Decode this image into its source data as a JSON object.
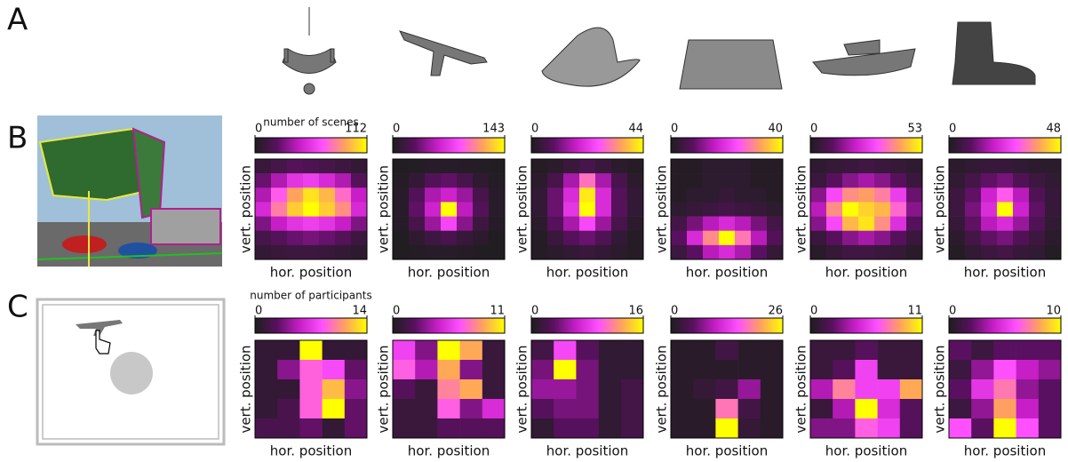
{
  "panel_labels": [
    "A",
    "B",
    "C"
  ],
  "chart_data": [
    {
      "type": "heatmap",
      "colorbar_title": "number of scenes",
      "xlabel": "hor. position",
      "ylabel": "vert. position",
      "zlim": [
        0,
        112
      ],
      "zticks": [
        0,
        112
      ],
      "colormap": [
        "#1e1e1e",
        "#5a1060",
        "#c81ec8",
        "#ff50ff",
        "#ffa060",
        "#ffff00"
      ],
      "z": [
        [
          10,
          15,
          20,
          18,
          15,
          12,
          8
        ],
        [
          25,
          40,
          55,
          60,
          50,
          40,
          20
        ],
        [
          40,
          70,
          90,
          105,
          95,
          75,
          45
        ],
        [
          50,
          80,
          100,
          112,
          100,
          85,
          50
        ],
        [
          30,
          45,
          55,
          60,
          55,
          45,
          30
        ],
        [
          15,
          20,
          25,
          28,
          25,
          20,
          12
        ],
        [
          8,
          10,
          12,
          12,
          10,
          8,
          6
        ]
      ]
    },
    {
      "type": "heatmap",
      "xlabel": "hor. position",
      "ylabel": "vert. position",
      "zlim": [
        0,
        143
      ],
      "zticks": [
        0,
        143
      ],
      "colormap": [
        "#1e1e1e",
        "#5a1060",
        "#c81ec8",
        "#ff50ff",
        "#ffa060",
        "#ffff00"
      ],
      "z": [
        [
          2,
          3,
          5,
          5,
          4,
          3,
          2
        ],
        [
          3,
          10,
          25,
          30,
          20,
          8,
          3
        ],
        [
          5,
          25,
          50,
          60,
          45,
          20,
          5
        ],
        [
          5,
          30,
          60,
          143,
          55,
          25,
          5
        ],
        [
          4,
          20,
          45,
          80,
          40,
          15,
          4
        ],
        [
          2,
          8,
          15,
          20,
          12,
          6,
          2
        ],
        [
          1,
          3,
          5,
          5,
          4,
          2,
          1
        ]
      ]
    },
    {
      "type": "heatmap",
      "xlabel": "hor. position",
      "ylabel": "vert. position",
      "zlim": [
        0,
        44
      ],
      "zticks": [
        0,
        44
      ],
      "colormap": [
        "#1e1e1e",
        "#5a1060",
        "#c81ec8",
        "#ff50ff",
        "#ffa060",
        "#ffff00"
      ],
      "z": [
        [
          1,
          2,
          4,
          6,
          4,
          2,
          1
        ],
        [
          2,
          6,
          15,
          30,
          15,
          6,
          2
        ],
        [
          3,
          10,
          20,
          42,
          20,
          8,
          3
        ],
        [
          3,
          10,
          22,
          44,
          20,
          8,
          3
        ],
        [
          2,
          8,
          15,
          25,
          14,
          6,
          2
        ],
        [
          1,
          4,
          8,
          10,
          7,
          3,
          1
        ],
        [
          1,
          2,
          3,
          4,
          3,
          2,
          1
        ]
      ]
    },
    {
      "type": "heatmap",
      "xlabel": "hor. position",
      "ylabel": "vert. position",
      "zlim": [
        0,
        40
      ],
      "zticks": [
        0,
        40
      ],
      "colormap": [
        "#1e1e1e",
        "#5a1060",
        "#c81ec8",
        "#ff50ff",
        "#ffa060",
        "#ffff00"
      ],
      "z": [
        [
          1,
          1,
          2,
          2,
          2,
          1,
          1
        ],
        [
          1,
          1,
          2,
          2,
          2,
          1,
          1
        ],
        [
          1,
          2,
          2,
          3,
          2,
          2,
          1
        ],
        [
          2,
          3,
          4,
          5,
          4,
          3,
          2
        ],
        [
          5,
          10,
          15,
          18,
          15,
          10,
          5
        ],
        [
          8,
          18,
          30,
          40,
          28,
          15,
          7
        ],
        [
          4,
          8,
          15,
          18,
          14,
          8,
          3
        ]
      ]
    },
    {
      "type": "heatmap",
      "xlabel": "hor. position",
      "ylabel": "vert. position",
      "zlim": [
        0,
        53
      ],
      "zticks": [
        0,
        53
      ],
      "colormap": [
        "#1e1e1e",
        "#5a1060",
        "#c81ec8",
        "#ff50ff",
        "#ffa060",
        "#ffff00"
      ],
      "z": [
        [
          3,
          4,
          5,
          6,
          5,
          4,
          3
        ],
        [
          5,
          10,
          15,
          18,
          15,
          10,
          5
        ],
        [
          15,
          30,
          40,
          42,
          38,
          28,
          12
        ],
        [
          20,
          40,
          53,
          48,
          45,
          35,
          15
        ],
        [
          15,
          30,
          45,
          50,
          40,
          25,
          10
        ],
        [
          5,
          10,
          15,
          18,
          15,
          10,
          5
        ],
        [
          2,
          4,
          6,
          6,
          5,
          4,
          2
        ]
      ]
    },
    {
      "type": "heatmap",
      "xlabel": "hor. position",
      "ylabel": "vert. position",
      "zlim": [
        0,
        48
      ],
      "zticks": [
        0,
        48
      ],
      "colormap": [
        "#1e1e1e",
        "#5a1060",
        "#c81ec8",
        "#ff50ff",
        "#ffa060",
        "#ffff00"
      ],
      "z": [
        [
          2,
          3,
          4,
          4,
          3,
          2,
          2
        ],
        [
          3,
          6,
          10,
          12,
          8,
          5,
          3
        ],
        [
          5,
          10,
          20,
          30,
          18,
          8,
          4
        ],
        [
          5,
          12,
          22,
          48,
          20,
          10,
          4
        ],
        [
          4,
          10,
          18,
          22,
          15,
          8,
          3
        ],
        [
          2,
          6,
          10,
          12,
          8,
          5,
          2
        ],
        [
          1,
          3,
          5,
          6,
          4,
          3,
          1
        ]
      ]
    },
    {
      "type": "heatmap",
      "colorbar_title": "number of participants",
      "xlabel": "hor. position",
      "ylabel": "vert. position",
      "zlim": [
        0,
        14
      ],
      "zticks": [
        0,
        14
      ],
      "colormap": [
        "#1e1e1e",
        "#5a1060",
        "#c81ec8",
        "#ff50ff",
        "#ffa060",
        "#ffff00"
      ],
      "z": [
        [
          1,
          1,
          14,
          1,
          1
        ],
        [
          1,
          4,
          9,
          8,
          3
        ],
        [
          1,
          1,
          9,
          12,
          4
        ],
        [
          1,
          2,
          9,
          14,
          3
        ],
        [
          2,
          2,
          3,
          1,
          3
        ]
      ]
    },
    {
      "type": "heatmap",
      "xlabel": "hor. position",
      "ylabel": "vert. position",
      "zlim": [
        0,
        11
      ],
      "zticks": [
        0,
        11
      ],
      "colormap": [
        "#1e1e1e",
        "#5a1060",
        "#c81ec8",
        "#ff50ff",
        "#ffa060",
        "#ffff00"
      ],
      "z": [
        [
          6,
          3,
          11,
          9,
          1
        ],
        [
          7,
          4,
          9,
          3,
          1
        ],
        [
          2,
          1,
          8,
          9,
          1
        ],
        [
          1,
          1,
          7,
          3,
          5
        ],
        [
          1,
          1,
          2,
          2,
          2
        ]
      ]
    },
    {
      "type": "heatmap",
      "xlabel": "hor. position",
      "ylabel": "vert. position",
      "zlim": [
        0,
        16
      ],
      "zticks": [
        0,
        16
      ],
      "colormap": [
        "#1e1e1e",
        "#5a1060",
        "#c81ec8",
        "#ff50ff",
        "#ffa060",
        "#ffff00"
      ],
      "z": [
        [
          2,
          9,
          3,
          1,
          1
        ],
        [
          4,
          16,
          4,
          1,
          1
        ],
        [
          5,
          5,
          4,
          1,
          2
        ],
        [
          3,
          4,
          4,
          1,
          2
        ],
        [
          1,
          3,
          3,
          1,
          2
        ]
      ]
    },
    {
      "type": "heatmap",
      "xlabel": "hor. position",
      "ylabel": "vert. position",
      "zlim": [
        0,
        26
      ],
      "zticks": [
        0,
        26
      ],
      "colormap": [
        "#1e1e1e",
        "#5a1060",
        "#c81ec8",
        "#ff50ff",
        "#ffa060",
        "#ffff00"
      ],
      "z": [
        [
          1,
          1,
          3,
          1,
          1
        ],
        [
          1,
          1,
          1,
          1,
          1
        ],
        [
          1,
          2,
          3,
          8,
          1
        ],
        [
          1,
          1,
          18,
          3,
          1
        ],
        [
          1,
          1,
          26,
          2,
          1
        ]
      ]
    },
    {
      "type": "heatmap",
      "xlabel": "hor. position",
      "ylabel": "vert. position",
      "zlim": [
        0,
        11
      ],
      "zticks": [
        0,
        11
      ],
      "colormap": [
        "#1e1e1e",
        "#5a1060",
        "#c81ec8",
        "#ff50ff",
        "#ffa060",
        "#ffff00"
      ],
      "z": [
        [
          1,
          1,
          2,
          1,
          1
        ],
        [
          1,
          2,
          6,
          1,
          1
        ],
        [
          4,
          8,
          6,
          6,
          9
        ],
        [
          1,
          4,
          11,
          5,
          2
        ],
        [
          3,
          3,
          7,
          6,
          2
        ]
      ]
    },
    {
      "type": "heatmap",
      "xlabel": "hor. position",
      "ylabel": "vert. position",
      "zlim": [
        0,
        10
      ],
      "zticks": [
        0,
        10
      ],
      "colormap": [
        "#1e1e1e",
        "#5a1060",
        "#c81ec8",
        "#ff50ff",
        "#ffa060",
        "#ffff00"
      ],
      "z": [
        [
          2,
          1,
          2,
          2,
          2
        ],
        [
          1,
          3,
          6,
          4,
          3
        ],
        [
          2,
          5,
          7,
          3,
          2
        ],
        [
          1,
          3,
          8,
          4,
          2
        ],
        [
          6,
          2,
          10,
          6,
          2
        ]
      ]
    }
  ]
}
